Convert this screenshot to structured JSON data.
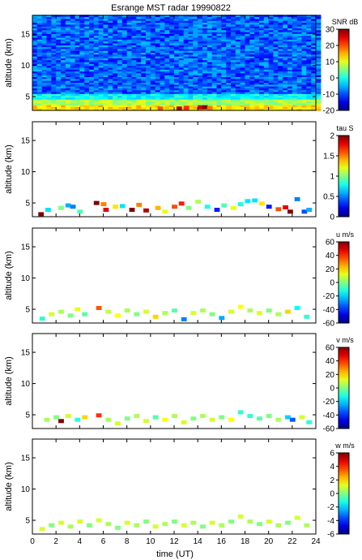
{
  "chart_data": {
    "type": "heatmap",
    "title": "Esrange MST radar 19990822",
    "xlabel": "time (UT)",
    "x_ticks": [
      "0",
      "2",
      "4",
      "6",
      "8",
      "10",
      "12",
      "14",
      "16",
      "18",
      "20",
      "22",
      "24"
    ],
    "xlim": [
      0,
      24
    ],
    "ylabel": "altitude (km)",
    "y_ticks": [
      "5",
      "10",
      "15"
    ],
    "ylim": [
      2.8,
      18
    ],
    "colormap": "jet",
    "panels": [
      {
        "quantity": "SNR",
        "unit": "dB",
        "clim": [
          -20,
          30
        ],
        "cbar_ticks": [
          "-20",
          "-10",
          "0",
          "10",
          "20",
          "30"
        ],
        "field": "continuous noise (about -10 to 0 dB) above 5 km; enhanced echoes of about 5-15 dB between 3 and 4.5 km; strongest echoes (up to about 30 dB) near 3.2 km around 12-16 UT",
        "cells": [
          {
            "t": 12.4,
            "h": 3.1,
            "v": 28
          },
          {
            "t": 13.0,
            "h": 3.2,
            "v": 22
          },
          {
            "t": 14.2,
            "h": 3.3,
            "v": 26
          },
          {
            "t": 14.6,
            "h": 3.3,
            "v": 30
          },
          {
            "t": 15.0,
            "h": 3.2,
            "v": 18
          },
          {
            "t": 16.6,
            "h": 3.3,
            "v": 14
          },
          {
            "t": 10.8,
            "h": 3.1,
            "v": 20
          },
          {
            "t": 7.0,
            "h": 3.3,
            "v": 12
          }
        ]
      },
      {
        "quantity": "tau",
        "unit": "S",
        "clim": [
          0,
          2
        ],
        "cbar_ticks": [
          "0",
          "0.5",
          "1",
          "1.5",
          "2"
        ],
        "cells": [
          {
            "t": 0.7,
            "h": 3.2,
            "v": 2.0
          },
          {
            "t": 1.3,
            "h": 3.9,
            "v": 0.7
          },
          {
            "t": 2.4,
            "h": 4.2,
            "v": 1.0
          },
          {
            "t": 3.0,
            "h": 4.6,
            "v": 0.6
          },
          {
            "t": 3.4,
            "h": 4.4,
            "v": 0.5
          },
          {
            "t": 4.0,
            "h": 3.6,
            "v": 0.9
          },
          {
            "t": 5.4,
            "h": 5.0,
            "v": 2.0
          },
          {
            "t": 6.0,
            "h": 4.8,
            "v": 1.5
          },
          {
            "t": 6.2,
            "h": 3.9,
            "v": 1.8
          },
          {
            "t": 7.0,
            "h": 4.4,
            "v": 1.3
          },
          {
            "t": 7.6,
            "h": 4.5,
            "v": 0.7
          },
          {
            "t": 8.4,
            "h": 3.9,
            "v": 2.0
          },
          {
            "t": 9.0,
            "h": 4.7,
            "v": 1.5
          },
          {
            "t": 9.6,
            "h": 3.8,
            "v": 1.9
          },
          {
            "t": 10.6,
            "h": 4.2,
            "v": 1.4
          },
          {
            "t": 11.2,
            "h": 3.6,
            "v": 1.2
          },
          {
            "t": 12.0,
            "h": 4.4,
            "v": 1.6
          },
          {
            "t": 12.6,
            "h": 4.9,
            "v": 1.7
          },
          {
            "t": 13.2,
            "h": 4.2,
            "v": 1.0
          },
          {
            "t": 14.0,
            "h": 5.2,
            "v": 1.1
          },
          {
            "t": 14.8,
            "h": 4.4,
            "v": 0.8
          },
          {
            "t": 15.6,
            "h": 3.9,
            "v": 0.3
          },
          {
            "t": 16.2,
            "h": 4.6,
            "v": 0.9
          },
          {
            "t": 17.0,
            "h": 4.2,
            "v": 1.2
          },
          {
            "t": 17.6,
            "h": 4.8,
            "v": 0.8
          },
          {
            "t": 18.2,
            "h": 5.3,
            "v": 0.7
          },
          {
            "t": 18.8,
            "h": 5.4,
            "v": 0.7
          },
          {
            "t": 19.4,
            "h": 4.9,
            "v": 1.3
          },
          {
            "t": 20.0,
            "h": 4.4,
            "v": 0.3
          },
          {
            "t": 20.8,
            "h": 4.0,
            "v": 1.6
          },
          {
            "t": 21.4,
            "h": 4.3,
            "v": 1.8
          },
          {
            "t": 21.8,
            "h": 3.6,
            "v": 2.0
          },
          {
            "t": 22.4,
            "h": 5.6,
            "v": 0.5
          },
          {
            "t": 23.0,
            "h": 3.6,
            "v": 0.4
          },
          {
            "t": 23.4,
            "h": 3.9,
            "v": 0.6
          }
        ]
      },
      {
        "quantity": "u",
        "unit": "m/s",
        "clim": [
          -60,
          60
        ],
        "cbar_ticks": [
          "-60",
          "-40",
          "-20",
          "0",
          "20",
          "40",
          "60"
        ],
        "cells": [
          {
            "t": 0.8,
            "h": 3.5,
            "v": -10
          },
          {
            "t": 1.6,
            "h": 4.2,
            "v": 10
          },
          {
            "t": 2.4,
            "h": 4.6,
            "v": 5
          },
          {
            "t": 3.2,
            "h": 4.0,
            "v": 0
          },
          {
            "t": 3.8,
            "h": 5.0,
            "v": 12
          },
          {
            "t": 4.4,
            "h": 4.2,
            "v": -5
          },
          {
            "t": 5.6,
            "h": 5.2,
            "v": 35
          },
          {
            "t": 6.4,
            "h": 4.6,
            "v": 8
          },
          {
            "t": 7.2,
            "h": 4.0,
            "v": 15
          },
          {
            "t": 8.0,
            "h": 4.8,
            "v": 5
          },
          {
            "t": 8.8,
            "h": 4.2,
            "v": 0
          },
          {
            "t": 9.6,
            "h": 4.6,
            "v": 10
          },
          {
            "t": 10.4,
            "h": 3.8,
            "v": 20
          },
          {
            "t": 11.2,
            "h": 4.4,
            "v": 5
          },
          {
            "t": 12.0,
            "h": 4.8,
            "v": -5
          },
          {
            "t": 12.8,
            "h": 3.4,
            "v": -30
          },
          {
            "t": 13.6,
            "h": 4.4,
            "v": 10
          },
          {
            "t": 14.4,
            "h": 4.8,
            "v": 5
          },
          {
            "t": 15.2,
            "h": 4.2,
            "v": 0
          },
          {
            "t": 16.0,
            "h": 3.6,
            "v": -25
          },
          {
            "t": 16.8,
            "h": 4.6,
            "v": 10
          },
          {
            "t": 17.6,
            "h": 5.4,
            "v": 15
          },
          {
            "t": 18.4,
            "h": 4.8,
            "v": 5
          },
          {
            "t": 19.2,
            "h": 4.4,
            "v": 10
          },
          {
            "t": 20.0,
            "h": 4.8,
            "v": 0
          },
          {
            "t": 20.8,
            "h": 4.2,
            "v": 5
          },
          {
            "t": 21.6,
            "h": 4.6,
            "v": 20
          },
          {
            "t": 22.4,
            "h": 5.2,
            "v": -15
          },
          {
            "t": 23.2,
            "h": 3.8,
            "v": -10
          }
        ]
      },
      {
        "quantity": "v",
        "unit": "m/s",
        "clim": [
          -60,
          60
        ],
        "cbar_ticks": [
          "-60",
          "-40",
          "-20",
          "0",
          "20",
          "40",
          "60"
        ],
        "cells": [
          {
            "t": 1.2,
            "h": 4.2,
            "v": 5
          },
          {
            "t": 2.0,
            "h": 4.6,
            "v": 0
          },
          {
            "t": 2.4,
            "h": 4.0,
            "v": 60
          },
          {
            "t": 3.0,
            "h": 4.8,
            "v": 10
          },
          {
            "t": 3.8,
            "h": 4.2,
            "v": -10
          },
          {
            "t": 4.4,
            "h": 4.6,
            "v": 20
          },
          {
            "t": 5.6,
            "h": 4.9,
            "v": 40
          },
          {
            "t": 6.4,
            "h": 4.2,
            "v": 5
          },
          {
            "t": 7.2,
            "h": 3.6,
            "v": 10
          },
          {
            "t": 8.0,
            "h": 4.4,
            "v": 0
          },
          {
            "t": 8.8,
            "h": 4.8,
            "v": 5
          },
          {
            "t": 9.6,
            "h": 4.0,
            "v": 10
          },
          {
            "t": 10.4,
            "h": 4.6,
            "v": -5
          },
          {
            "t": 11.2,
            "h": 4.2,
            "v": 15
          },
          {
            "t": 12.0,
            "h": 4.8,
            "v": 5
          },
          {
            "t": 12.8,
            "h": 3.8,
            "v": 10
          },
          {
            "t": 13.6,
            "h": 4.4,
            "v": 0
          },
          {
            "t": 14.4,
            "h": 4.8,
            "v": 5
          },
          {
            "t": 15.2,
            "h": 4.2,
            "v": 10
          },
          {
            "t": 16.0,
            "h": 4.6,
            "v": 0
          },
          {
            "t": 16.8,
            "h": 4.2,
            "v": 15
          },
          {
            "t": 17.6,
            "h": 5.4,
            "v": -10
          },
          {
            "t": 18.4,
            "h": 4.8,
            "v": -10
          },
          {
            "t": 19.2,
            "h": 4.4,
            "v": -5
          },
          {
            "t": 20.0,
            "h": 4.8,
            "v": 0
          },
          {
            "t": 20.8,
            "h": 4.2,
            "v": 5
          },
          {
            "t": 21.6,
            "h": 4.6,
            "v": -20
          },
          {
            "t": 22.0,
            "h": 4.2,
            "v": -35
          },
          {
            "t": 22.8,
            "h": 4.6,
            "v": 10
          },
          {
            "t": 23.4,
            "h": 3.8,
            "v": -10
          }
        ]
      },
      {
        "quantity": "w",
        "unit": "m/s",
        "clim": [
          -6,
          6
        ],
        "cbar_ticks": [
          "-6",
          "-4",
          "-2",
          "0",
          "2",
          "4",
          "6"
        ],
        "cells": [
          {
            "t": 0.8,
            "h": 3.6,
            "v": 1
          },
          {
            "t": 1.6,
            "h": 4.2,
            "v": 0
          },
          {
            "t": 2.4,
            "h": 4.6,
            "v": 1
          },
          {
            "t": 3.2,
            "h": 4.0,
            "v": 0.5
          },
          {
            "t": 4.0,
            "h": 4.8,
            "v": 1
          },
          {
            "t": 4.8,
            "h": 4.2,
            "v": 0
          },
          {
            "t": 5.6,
            "h": 5.0,
            "v": 1
          },
          {
            "t": 6.4,
            "h": 4.4,
            "v": 0.5
          },
          {
            "t": 7.2,
            "h": 3.8,
            "v": 0
          },
          {
            "t": 8.0,
            "h": 4.6,
            "v": 1
          },
          {
            "t": 8.8,
            "h": 4.2,
            "v": 0.5
          },
          {
            "t": 9.6,
            "h": 4.8,
            "v": 0
          },
          {
            "t": 10.4,
            "h": 4.0,
            "v": 1
          },
          {
            "t": 11.2,
            "h": 4.4,
            "v": 0.5
          },
          {
            "t": 12.0,
            "h": 4.8,
            "v": 0
          },
          {
            "t": 12.8,
            "h": 4.2,
            "v": 1
          },
          {
            "t": 13.6,
            "h": 4.6,
            "v": 0.5
          },
          {
            "t": 14.4,
            "h": 4.0,
            "v": 0
          },
          {
            "t": 15.2,
            "h": 4.6,
            "v": 1
          },
          {
            "t": 16.0,
            "h": 4.2,
            "v": 0.5
          },
          {
            "t": 16.8,
            "h": 4.8,
            "v": 0
          },
          {
            "t": 17.6,
            "h": 5.6,
            "v": 1
          },
          {
            "t": 18.4,
            "h": 4.8,
            "v": 0.5
          },
          {
            "t": 19.2,
            "h": 4.4,
            "v": 0
          },
          {
            "t": 20.0,
            "h": 4.8,
            "v": 1
          },
          {
            "t": 20.8,
            "h": 4.2,
            "v": 0.5
          },
          {
            "t": 21.6,
            "h": 4.6,
            "v": 0
          },
          {
            "t": 22.4,
            "h": 5.4,
            "v": 1
          },
          {
            "t": 23.2,
            "h": 4.2,
            "v": 0.5
          }
        ]
      }
    ]
  }
}
